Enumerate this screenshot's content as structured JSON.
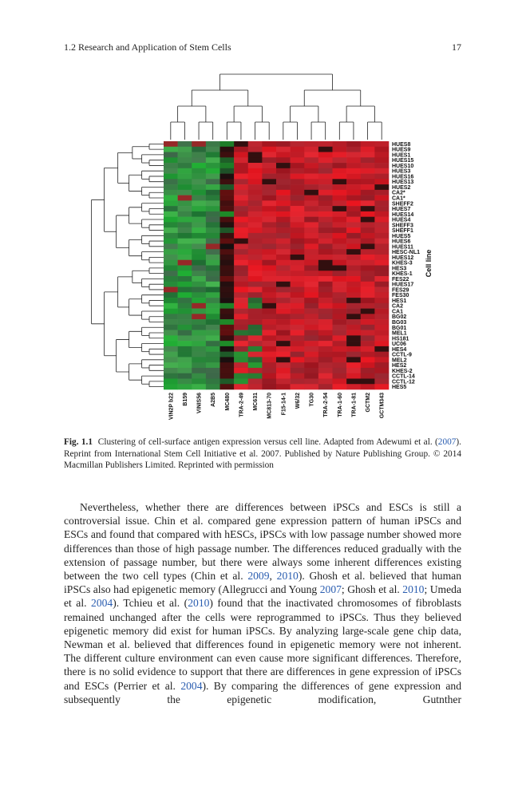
{
  "header": {
    "section": "1.2 Research and Application of Stem Cells",
    "page": "17"
  },
  "figure": {
    "columns": [
      "VIN2P b22",
      "B159",
      "VINIS56",
      "A2B5",
      "MC480",
      "TRA-2-49",
      "MC631",
      "MC813-70",
      "F15-14-1",
      "W6/32",
      "TG30",
      "TRA-2-54",
      "TRA-1-60",
      "TRA-1-81",
      "GCTM2",
      "GCTM343"
    ],
    "rows": [
      "HUES8",
      "HUES9",
      "HUES1",
      "HUES15",
      "HUES10",
      "HUES3",
      "HUES16",
      "HUES13",
      "HUES2",
      "CA2*",
      "CA1*",
      "SHEFF2",
      "HUES7",
      "HUES14",
      "HUES4",
      "SHEFF3",
      "SHEFF1",
      "HUES5",
      "HUES6",
      "HUES11",
      "HESC-NL1",
      "HUES12",
      "KHES-3",
      "HES3",
      "KHES-1",
      "FES22",
      "HUES17",
      "FES29",
      "FES30",
      "HES1",
      "CA2",
      "CA1",
      "BG02",
      "BG03",
      "BG01",
      "MEL1",
      "HS181",
      "UC06",
      "HES4",
      "CCTL-9",
      "MEL2",
      "HES2",
      "KHES-2",
      "CCTL-14",
      "CCTL-12",
      "HES5"
    ],
    "axis_label": "Cell line"
  },
  "caption": {
    "label": "Fig. 1.1",
    "runs": [
      "Clustering of cell-surface antigen expression versus cell line. Adapted from Adewumi et al. (",
      "2007",
      "). Reprint from International Stem Cell Initiative et al. 2007. Published by Nature Publishing Group. © 2014 Macmillan Publishers Limited. Reprinted with permission"
    ]
  },
  "body": {
    "runs": [
      "Nevertheless, whether there are differences between iPSCs and ESCs is still a controversial issue. Chin et al. compared gene expression pattern of human iPSCs and ESCs and found that compared with hESCs, iPSCs with low passage number showed more differences than those of high passage number. The differences reduced gradually with the extension of passage number, but there were always some inherent differences existing between the two cell types (Chin et al. ",
      "2009",
      ", ",
      "2010",
      "). Ghosh et al. believed that human iPSCs also had epigenetic memory (Allegrucci and Young ",
      "2007",
      "; Ghosh et al. ",
      "2010",
      "; Umeda et al. ",
      "2004",
      "). Tchieu et al. (",
      "2010",
      ") found that the inactivated chromosomes of fibroblasts remained unchanged after the cells were reprogrammed to iPSCs. Thus they believed epigenetic memory did exist for human iPSCs. By analyzing large-scale gene chip data, Newman et al. believed that differences found in epigenetic memory were not inherent. The different culture environment can even cause more significant differences. Therefore, there is no solid evidence to support that there are differences in gene expression of iPSCs and ESCs (Perrier et al. ",
      "2004",
      "). By comparing the differences of gene expression and subsequently the epigenetic modification, Gutnther"
    ]
  }
}
